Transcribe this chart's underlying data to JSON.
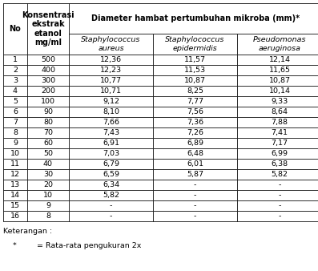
{
  "rows": [
    [
      "1",
      "500",
      "12,36",
      "11,57",
      "12,14"
    ],
    [
      "2",
      "400",
      "12,23",
      "11,53",
      "11,65"
    ],
    [
      "3",
      "300",
      "10,77",
      "10,87",
      "10,87"
    ],
    [
      "4",
      "200",
      "10,71",
      "8,25",
      "10,14"
    ],
    [
      "5",
      "100",
      "9,12",
      "7,77",
      "9,33"
    ],
    [
      "6",
      "90",
      "8,10",
      "7,56",
      "8,64"
    ],
    [
      "7",
      "80",
      "7,66",
      "7,36",
      "7,88"
    ],
    [
      "8",
      "70",
      "7,43",
      "7,26",
      "7,41"
    ],
    [
      "9",
      "60",
      "6,91",
      "6,89",
      "7,17"
    ],
    [
      "10",
      "50",
      "7,03",
      "6,48",
      "6,99"
    ],
    [
      "11",
      "40",
      "6,79",
      "6,01",
      "6,38"
    ],
    [
      "12",
      "30",
      "6,59",
      "5,87",
      "5,82"
    ],
    [
      "13",
      "20",
      "6,34",
      "-",
      "-"
    ],
    [
      "14",
      "10",
      "5,82",
      "-",
      "-"
    ],
    [
      "15",
      "9",
      "-",
      "-",
      "-"
    ],
    [
      "16",
      "8",
      "-",
      "-",
      "-"
    ]
  ],
  "header1_no": "No",
  "header1_konsentrasi": "Konsentrasi\nekstrak\netanol\nmg/ml",
  "header1_diameter": "Diameter hambat pertumbuhan mikroba (mm)*",
  "header2_bacteria": [
    "Staphylococcus\naureus",
    "Staphylococcus\nepidermidis",
    "Pseudomonas\naeruginosa"
  ],
  "keterangan": "Keterangan :",
  "footnote_star": "*",
  "footnote_text": "= Rata-rata pengukuran 2x",
  "font_size": 6.8,
  "header_font_size": 7.0,
  "lw": 0.5
}
